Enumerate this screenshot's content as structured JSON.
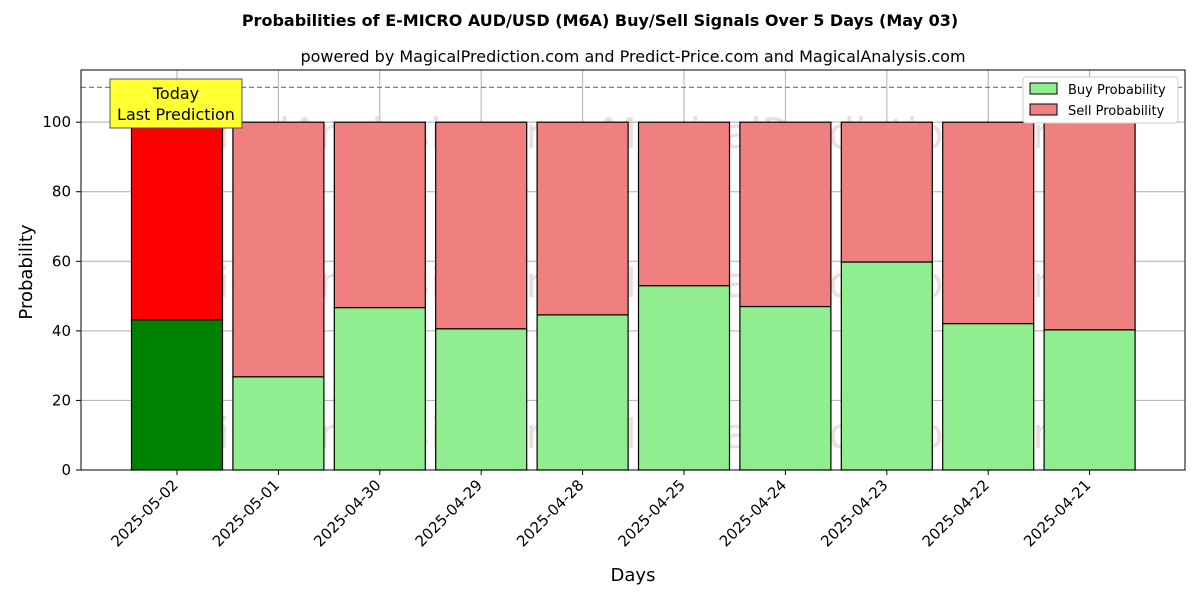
{
  "chart_data": {
    "type": "bar",
    "stacked": true,
    "title": "Probabilities of E-MICRO AUD/USD (M6A) Buy/Sell Signals Over 5 Days (May 03)",
    "subtitle": "powered by MagicalPrediction.com and Predict-Price.com and MagicalAnalysis.com",
    "xlabel": "Days",
    "ylabel": "Probability",
    "ylim": [
      0,
      115
    ],
    "yticks": [
      0,
      20,
      40,
      60,
      80,
      100
    ],
    "reference_line": 110,
    "grid": true,
    "legend_position": "top-right",
    "categories": [
      "2025-05-02",
      "2025-05-01",
      "2025-04-30",
      "2025-04-29",
      "2025-04-28",
      "2025-04-25",
      "2025-04-24",
      "2025-04-23",
      "2025-04-22",
      "2025-04-21"
    ],
    "series": [
      {
        "name": "Buy Probability",
        "values": [
          43.2,
          26.8,
          46.7,
          40.6,
          44.6,
          53.0,
          47.0,
          59.8,
          42.1,
          40.3
        ]
      },
      {
        "name": "Sell Probability",
        "values": [
          56.8,
          73.2,
          53.3,
          59.4,
          55.4,
          47.0,
          53.0,
          40.2,
          57.9,
          59.7
        ]
      }
    ],
    "colors": {
      "buy": "#90ee90",
      "sell": "#f08080",
      "buy_highlight": "#008000",
      "sell_highlight": "#ff0000",
      "annotation_bg": "#ffff33"
    },
    "annotation": {
      "line1": "Today",
      "line2": "Last Prediction"
    },
    "watermarks": [
      "MagicalAnalysis.com",
      "MagicalPrediction.com"
    ]
  }
}
